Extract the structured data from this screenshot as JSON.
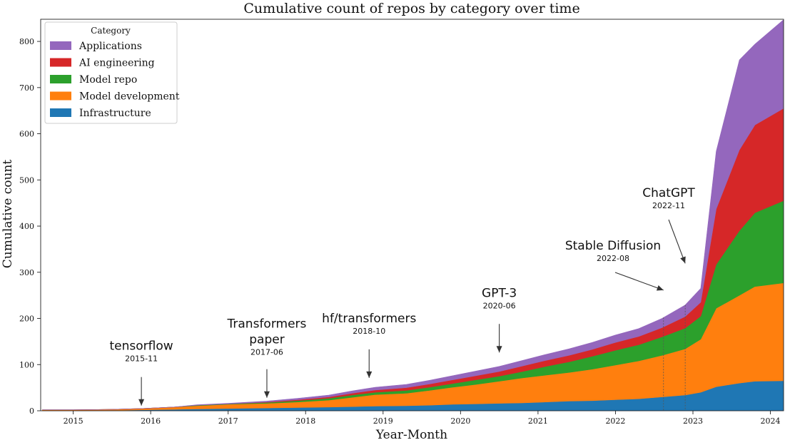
{
  "chart_data": {
    "type": "area",
    "stacked": true,
    "title": "Cumulative count of repos by category over time",
    "xlabel": "Year-Month",
    "ylabel": "Cumulative count",
    "x_ticks": [
      2015,
      2016,
      2017,
      2018,
      2019,
      2020,
      2021,
      2022,
      2023,
      2024
    ],
    "x_tick_labels": [
      "2015",
      "2016",
      "2017",
      "2018",
      "2019",
      "2020",
      "2021",
      "2022",
      "2023",
      "2024"
    ],
    "y_ticks": [
      0,
      100,
      200,
      300,
      400,
      500,
      600,
      700,
      800
    ],
    "y_tick_labels": [
      "0",
      "100",
      "200",
      "300",
      "400",
      "500",
      "600",
      "700",
      "800"
    ],
    "xlim": [
      2014.58,
      2024.17
    ],
    "ylim": [
      0,
      848
    ],
    "legend": {
      "title": "Category",
      "position": "top-left"
    },
    "x": [
      2014.6,
      2015.0,
      2015.5,
      2015.9,
      2016.3,
      2016.6,
      2017.0,
      2017.5,
      2017.9,
      2018.3,
      2018.6,
      2018.9,
      2019.3,
      2019.6,
      2019.9,
      2020.2,
      2020.5,
      2020.8,
      2021.1,
      2021.4,
      2021.7,
      2022.0,
      2022.3,
      2022.6,
      2022.9,
      2023.1,
      2023.3,
      2023.6,
      2023.8,
      2024.17
    ],
    "series": [
      {
        "name": "Infrastructure",
        "color": "#1f77b4",
        "values": [
          0,
          0,
          1,
          2,
          3,
          4,
          5,
          6,
          7,
          8,
          9,
          10,
          11,
          12,
          14,
          15,
          16,
          17,
          19,
          21,
          22,
          24,
          26,
          30,
          34,
          40,
          52,
          60,
          64,
          65
        ]
      },
      {
        "name": "Model development",
        "color": "#ff7f0e",
        "values": [
          2,
          2,
          2,
          3,
          5,
          7,
          9,
          10,
          12,
          15,
          20,
          25,
          27,
          32,
          37,
          42,
          48,
          54,
          58,
          62,
          68,
          75,
          82,
          90,
          100,
          115,
          170,
          190,
          205,
          212
        ]
      },
      {
        "name": "Model repo",
        "color": "#2ca02c",
        "values": [
          0,
          0,
          0,
          0,
          0,
          1,
          1,
          2,
          3,
          4,
          5,
          5,
          6,
          7,
          8,
          10,
          11,
          14,
          19,
          23,
          28,
          32,
          35,
          40,
          45,
          50,
          95,
          140,
          160,
          178
        ]
      },
      {
        "name": "AI engineering",
        "color": "#d62728",
        "values": [
          0,
          0,
          0,
          0,
          0,
          0,
          0,
          1,
          2,
          3,
          4,
          5,
          6,
          7,
          8,
          9,
          10,
          12,
          13,
          14,
          15,
          17,
          18,
          20,
          25,
          30,
          120,
          175,
          190,
          200
        ]
      },
      {
        "name": "Applications",
        "color": "#9467bd",
        "values": [
          0,
          0,
          0,
          0,
          0,
          1,
          1,
          2,
          3,
          4,
          5,
          6,
          7,
          8,
          9,
          10,
          11,
          12,
          13,
          14,
          15,
          16,
          17,
          20,
          25,
          30,
          125,
          195,
          175,
          192
        ]
      }
    ],
    "annotations": [
      {
        "label": "tensorflow",
        "date": "2015-11",
        "x": 2015.88,
        "y": 2
      },
      {
        "label": "Transformers\npaper",
        "date": "2017-06",
        "x": 2017.5,
        "y": 19
      },
      {
        "label": "hf/transformers",
        "date": "2018-10",
        "x": 2018.82,
        "y": 62
      },
      {
        "label": "GPT-3",
        "date": "2020-06",
        "x": 2020.5,
        "y": 117
      },
      {
        "label": "Stable Diffusion",
        "date": "2022-08",
        "x": 2022.62,
        "y": 252,
        "dashed": true
      },
      {
        "label": "ChatGPT",
        "date": "2022-11",
        "x": 2022.9,
        "y": 310,
        "dashed": true
      }
    ]
  }
}
